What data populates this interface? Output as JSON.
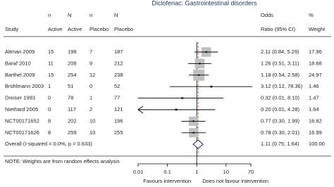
{
  "chart_data": {
    "type": "forest",
    "title": "Diclofenac: Gastrointestinal disorders",
    "header_top": [
      "n",
      "N",
      "n",
      "N",
      "Odds",
      "%"
    ],
    "header_bottom": [
      "Study",
      "Active",
      "Active",
      "Placebo",
      "Placebo",
      "Ratio (95% CI)",
      "Weight"
    ],
    "studies": [
      {
        "name": "Altman 2009",
        "n_active": 15,
        "N_active": 198,
        "n_placebo": 7,
        "N_placebo": 187,
        "or": 2.11,
        "lo": 0.84,
        "hi": 5.29,
        "ci_label": "2.11 (0.84, 5.29)",
        "weight": 17.96
      },
      {
        "name": "Baraf 2010",
        "n_active": 11,
        "N_active": 208,
        "n_placebo": 9,
        "N_placebo": 212,
        "or": 1.26,
        "lo": 0.51,
        "hi": 3.11,
        "ci_label": "1.26 (0.51, 3.11)",
        "weight": 18.68
      },
      {
        "name": "Barthel 2009",
        "n_active": 15,
        "N_active": 254,
        "n_placebo": 12,
        "N_placebo": 238,
        "or": 1.18,
        "lo": 0.54,
        "hi": 2.58,
        "ci_label": "1.18 (0.54, 2.58)",
        "weight": 24.97
      },
      {
        "name": "Brühlmann 2003",
        "n_active": 1,
        "N_active": 51,
        "n_placebo": 0,
        "N_placebo": 52,
        "or": 3.12,
        "lo": 0.12,
        "hi": 78.36,
        "ci_label": "3.12 (0.12, 78.36)",
        "weight": 1.46
      },
      {
        "name": "Dreiser 1993",
        "n_active": 0,
        "N_active": 78,
        "n_placebo": 1,
        "N_placebo": 77,
        "or": 0.32,
        "lo": 0.01,
        "hi": 8.1,
        "ci_label": "0.32 (0.01, 8.10)",
        "weight": 1.47
      },
      {
        "name": "Niethard 2005",
        "n_active": 0,
        "N_active": 117,
        "n_placebo": 2,
        "N_placebo": 121,
        "or": 0.2,
        "lo": 0.01,
        "hi": 4.28,
        "ci_label": "0.20 (0.01, 4.28)",
        "weight": 1.64,
        "arrow_left": true
      },
      {
        "name": "NCT00171652",
        "n_active": 8,
        "N_active": 202,
        "n_placebo": 10,
        "N_placebo": 196,
        "or": 0.77,
        "lo": 0.3,
        "hi": 1.99,
        "ci_label": "0.77 (0.30, 1.99)",
        "weight": 16.82
      },
      {
        "name": "NCT00171626",
        "n_active": 8,
        "N_active": 259,
        "n_placebo": 10,
        "N_placebo": 255,
        "or": 0.78,
        "lo": 0.3,
        "hi": 2.01,
        "ci_label": "0.78 (0.30, 2.01)",
        "weight": 16.99
      }
    ],
    "overall": {
      "label": "Overall  (I-squared = 0.0%, p = 0.633)",
      "or": 1.11,
      "lo": 0.75,
      "hi": 1.64,
      "ci_label": "1.11 (0.75, 1.64)",
      "weight": {
        "value": 100,
        "label": "100.00"
      }
    },
    "note": "NOTE: Weights are from random effects analysis",
    "xlim": [
      0.01,
      70
    ],
    "xticks": [
      0.01,
      0.1,
      1,
      10,
      70
    ],
    "log_scale": true,
    "xlabel_left": "Favours intervention",
    "xlabel_right": "Does not favour intervention",
    "square_color": "#c0c0c0",
    "diamond_color": "#1a237e",
    "ref_line_color": "#c62828"
  }
}
